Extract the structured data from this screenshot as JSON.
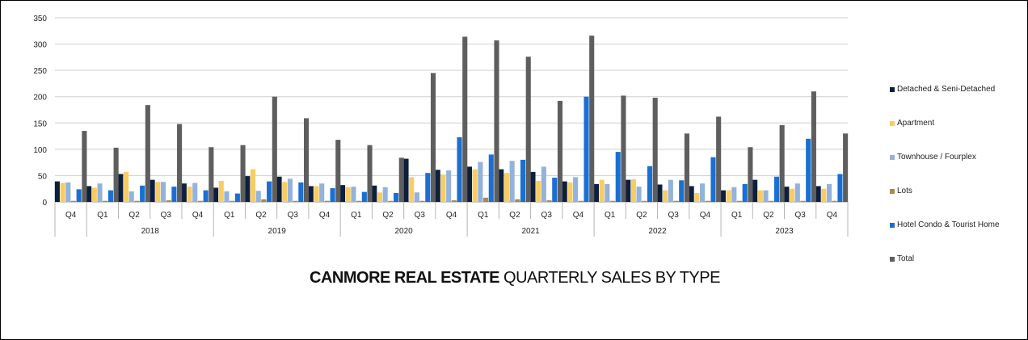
{
  "chart_data": {
    "type": "bar",
    "title": "CANMORE REAL ESTATE QUARTERLY SALES BY TYPE",
    "title_bold": "CANMORE REAL ESTATE",
    "title_rest": " QUARTERLY SALES BY TYPE",
    "ylim": [
      0,
      350
    ],
    "yticks": [
      0,
      50,
      100,
      150,
      200,
      250,
      300,
      350
    ],
    "grid": true,
    "legend_position": "right",
    "categories": [
      "Q4",
      "Q1",
      "Q2",
      "Q3",
      "Q4",
      "Q1",
      "Q2",
      "Q3",
      "Q4",
      "Q1",
      "Q2",
      "Q3",
      "Q4",
      "Q1",
      "Q2",
      "Q3",
      "Q4",
      "Q1",
      "Q2",
      "Q3",
      "Q4",
      "Q1",
      "Q2",
      "Q3",
      "Q4"
    ],
    "year_groups": [
      {
        "label": "",
        "count": 1
      },
      {
        "label": "2018",
        "count": 4
      },
      {
        "label": "2019",
        "count": 4
      },
      {
        "label": "2020",
        "count": 4
      },
      {
        "label": "2021",
        "count": 4
      },
      {
        "label": "2022",
        "count": 4
      },
      {
        "label": "2023",
        "count": 4
      }
    ],
    "series": [
      {
        "name": "Detached & Seni-Detached",
        "color": "#0d1f3c",
        "values": [
          39,
          30,
          53,
          42,
          35,
          27,
          49,
          48,
          30,
          32,
          31,
          82,
          61,
          67,
          62,
          57,
          39,
          34,
          42,
          33,
          30,
          22,
          42,
          29,
          30
        ]
      },
      {
        "name": "Apartment",
        "color": "#f7cd63",
        "values": [
          36,
          27,
          57,
          38,
          29,
          40,
          62,
          38,
          30,
          28,
          18,
          47,
          52,
          62,
          55,
          40,
          37,
          42,
          43,
          22,
          17,
          22,
          22,
          25,
          25
        ]
      },
      {
        "name": "Townhouse / Fourplex",
        "color": "#93b2dc",
        "values": [
          37,
          35,
          20,
          38,
          36,
          20,
          21,
          44,
          35,
          29,
          28,
          18,
          60,
          76,
          78,
          67,
          47,
          34,
          29,
          42,
          35,
          28,
          22,
          35,
          34
        ]
      },
      {
        "name": "Lots",
        "color": "#a88a4e",
        "values": [
          2,
          2,
          2,
          3,
          2,
          2,
          5,
          2,
          2,
          2,
          2,
          2,
          3,
          8,
          5,
          3,
          2,
          2,
          2,
          2,
          2,
          2,
          2,
          2,
          2
        ]
      },
      {
        "name": "Hotel Condo & Tourist Home",
        "color": "#1b6fd2",
        "values": [
          24,
          22,
          31,
          29,
          22,
          16,
          39,
          37,
          26,
          19,
          17,
          55,
          123,
          90,
          80,
          46,
          200,
          95,
          68,
          41,
          85,
          34,
          48,
          120,
          53
        ]
      },
      {
        "name": "Total",
        "color": "#5e5e5e",
        "values": [
          135,
          103,
          184,
          148,
          104,
          108,
          200,
          159,
          118,
          108,
          84,
          245,
          314,
          307,
          276,
          192,
          316,
          202,
          198,
          130,
          162,
          104,
          146,
          210,
          130
        ]
      }
    ]
  }
}
